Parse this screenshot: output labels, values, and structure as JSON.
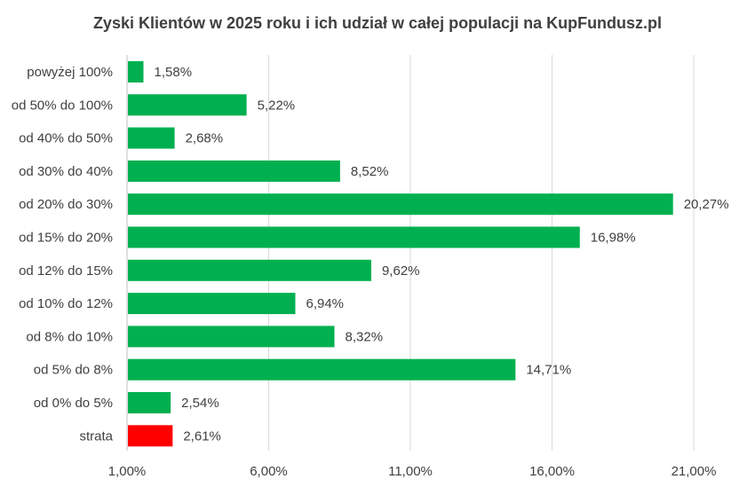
{
  "chart_data": {
    "type": "bar",
    "orientation": "horizontal",
    "title": "Zyski Klientów w 2025 roku i ich udział w całej populacji na KupFundusz.pl",
    "categories": [
      "powyżej 100%",
      "od 50% do 100%",
      "od 40% do 50%",
      "od 30% do 40%",
      "od 20% do 30%",
      "od 15% do 20%",
      "od 12% do 15%",
      "od 10% do 12%",
      "od 8% do 10%",
      "od 5% do 8%",
      "od 0% do 5%",
      "strata"
    ],
    "values": [
      1.58,
      5.22,
      2.68,
      8.52,
      20.27,
      16.98,
      9.62,
      6.94,
      8.32,
      14.71,
      2.54,
      2.61
    ],
    "data_labels": [
      "1,58%",
      "5,22%",
      "2,68%",
      "8,52%",
      "20,27%",
      "16,98%",
      "9,62%",
      "6,94%",
      "8,32%",
      "14,71%",
      "2,54%",
      "2,61%"
    ],
    "bar_colors": [
      "#00b050",
      "#00b050",
      "#00b050",
      "#00b050",
      "#00b050",
      "#00b050",
      "#00b050",
      "#00b050",
      "#00b050",
      "#00b050",
      "#00b050",
      "#ff0000"
    ],
    "xlim": [
      1.0,
      21.0
    ],
    "xticks": [
      1,
      6,
      11,
      16,
      21
    ],
    "xtick_labels": [
      "1,00%",
      "6,00%",
      "11,00%",
      "16,00%",
      "21,00%"
    ],
    "xlabel": "",
    "ylabel": "",
    "grid": "vertical",
    "legend": "none"
  }
}
